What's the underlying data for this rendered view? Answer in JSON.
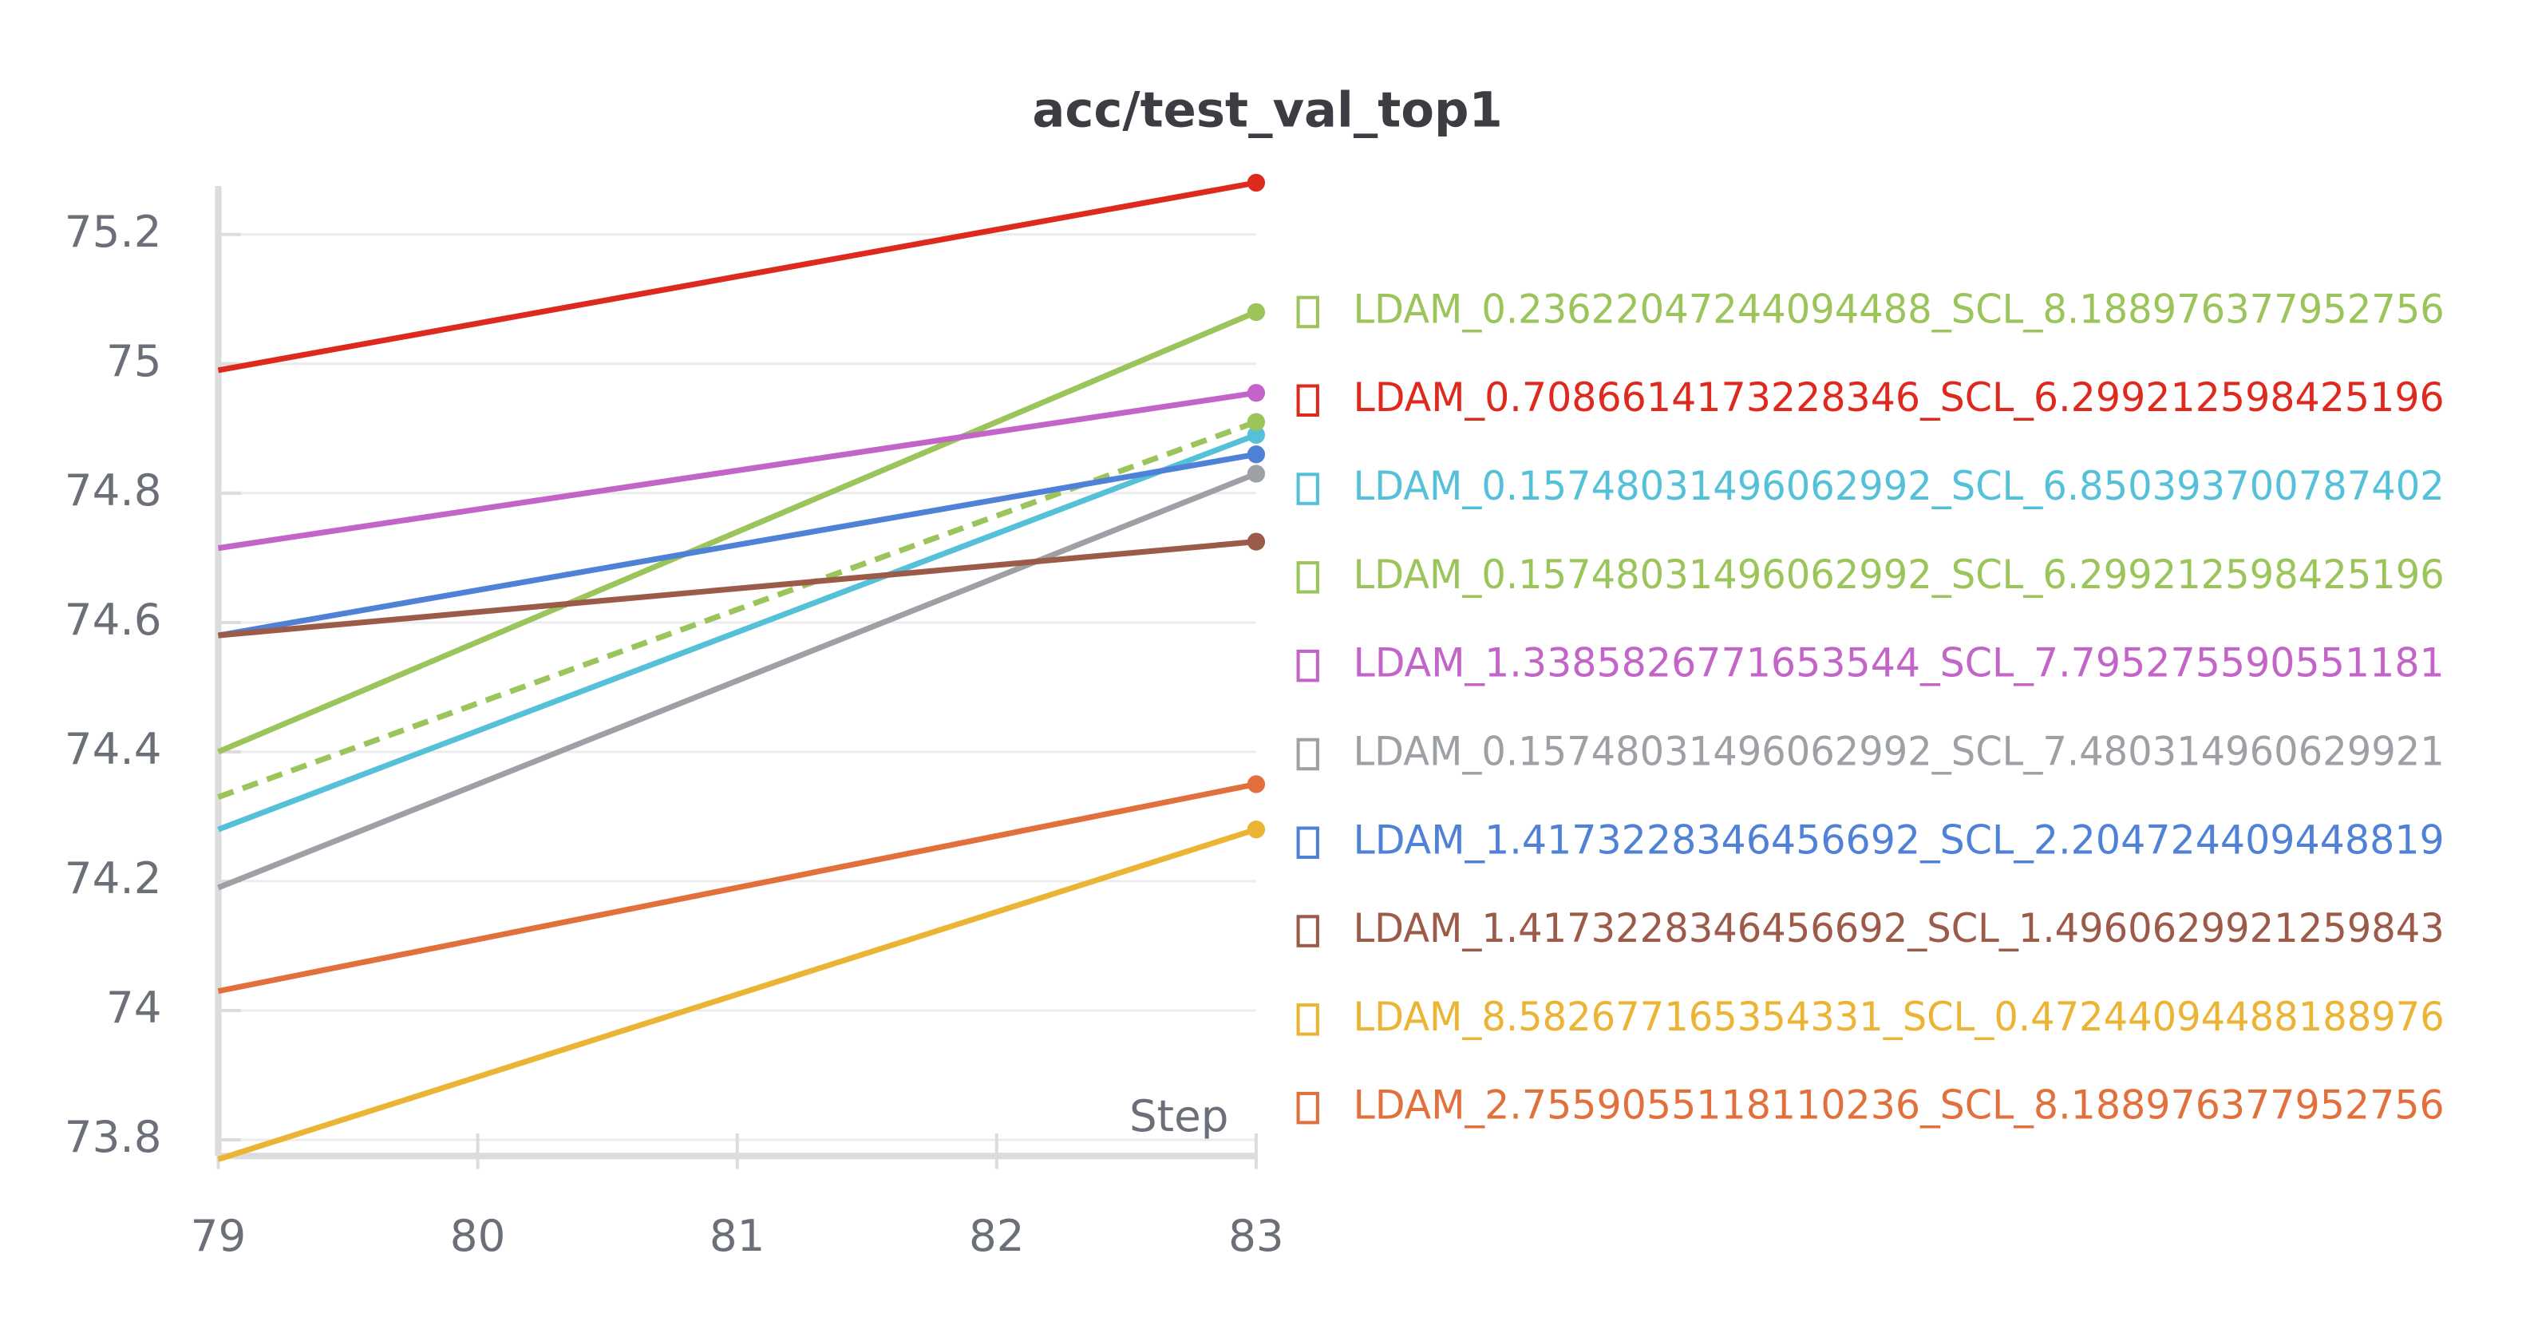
{
  "chart_data": {
    "type": "line",
    "title": "acc/test_val_top1",
    "x_label": "Step",
    "x": [
      79,
      83
    ],
    "xlim": [
      79,
      83
    ],
    "xticks": [
      79,
      80,
      81,
      82,
      83
    ],
    "ylim": [
      73.775,
      75.275
    ],
    "yticks": [
      73.8,
      74,
      74.2,
      74.4,
      74.6,
      74.8,
      75,
      75.2
    ],
    "grid": true,
    "legend": "right",
    "series": [
      {
        "name": "LDAM_0.23622047244094488_SCL_8.188976377952756",
        "color": "#9bc45a",
        "values": [
          74.4,
          75.08
        ]
      },
      {
        "name": "LDAM_0.7086614173228346_SCL_6.299212598425196",
        "color": "#de2a1e",
        "values": [
          74.99,
          75.28
        ]
      },
      {
        "name": "LDAM_0.15748031496062992_SCL_6.850393700787402",
        "color": "#55c1d8",
        "values": [
          74.28,
          74.89
        ]
      },
      {
        "name": "LDAM_0.15748031496062992_SCL_6.299212598425196",
        "color": "#9bc45a",
        "dashed": true,
        "values": [
          74.33,
          74.91
        ]
      },
      {
        "name": "LDAM_1.3385826771653544_SCL_7.795275590551181",
        "color": "#c364c8",
        "values": [
          74.715,
          74.955
        ]
      },
      {
        "name": "LDAM_0.15748031496062992_SCL_7.480314960629921",
        "color": "#9da1a6",
        "values": [
          74.19,
          74.83
        ]
      },
      {
        "name": "LDAM_1.4173228346456692_SCL_2.204724409448819",
        "color": "#4f82d6",
        "values": [
          74.58,
          74.86
        ]
      },
      {
        "name": "LDAM_1.4173228346456692_SCL_1.4960629921259843",
        "color": "#9c5a48",
        "values": [
          74.58,
          74.725
        ]
      },
      {
        "name": "LDAM_8.582677165354331_SCL_0.47244094488188976",
        "color": "#ebb434",
        "values": [
          73.77,
          74.28
        ]
      },
      {
        "name": "LDAM_2.7559055118110236_SCL_8.188976377952756",
        "color": "#e2703c",
        "values": [
          74.03,
          74.35
        ]
      }
    ]
  }
}
